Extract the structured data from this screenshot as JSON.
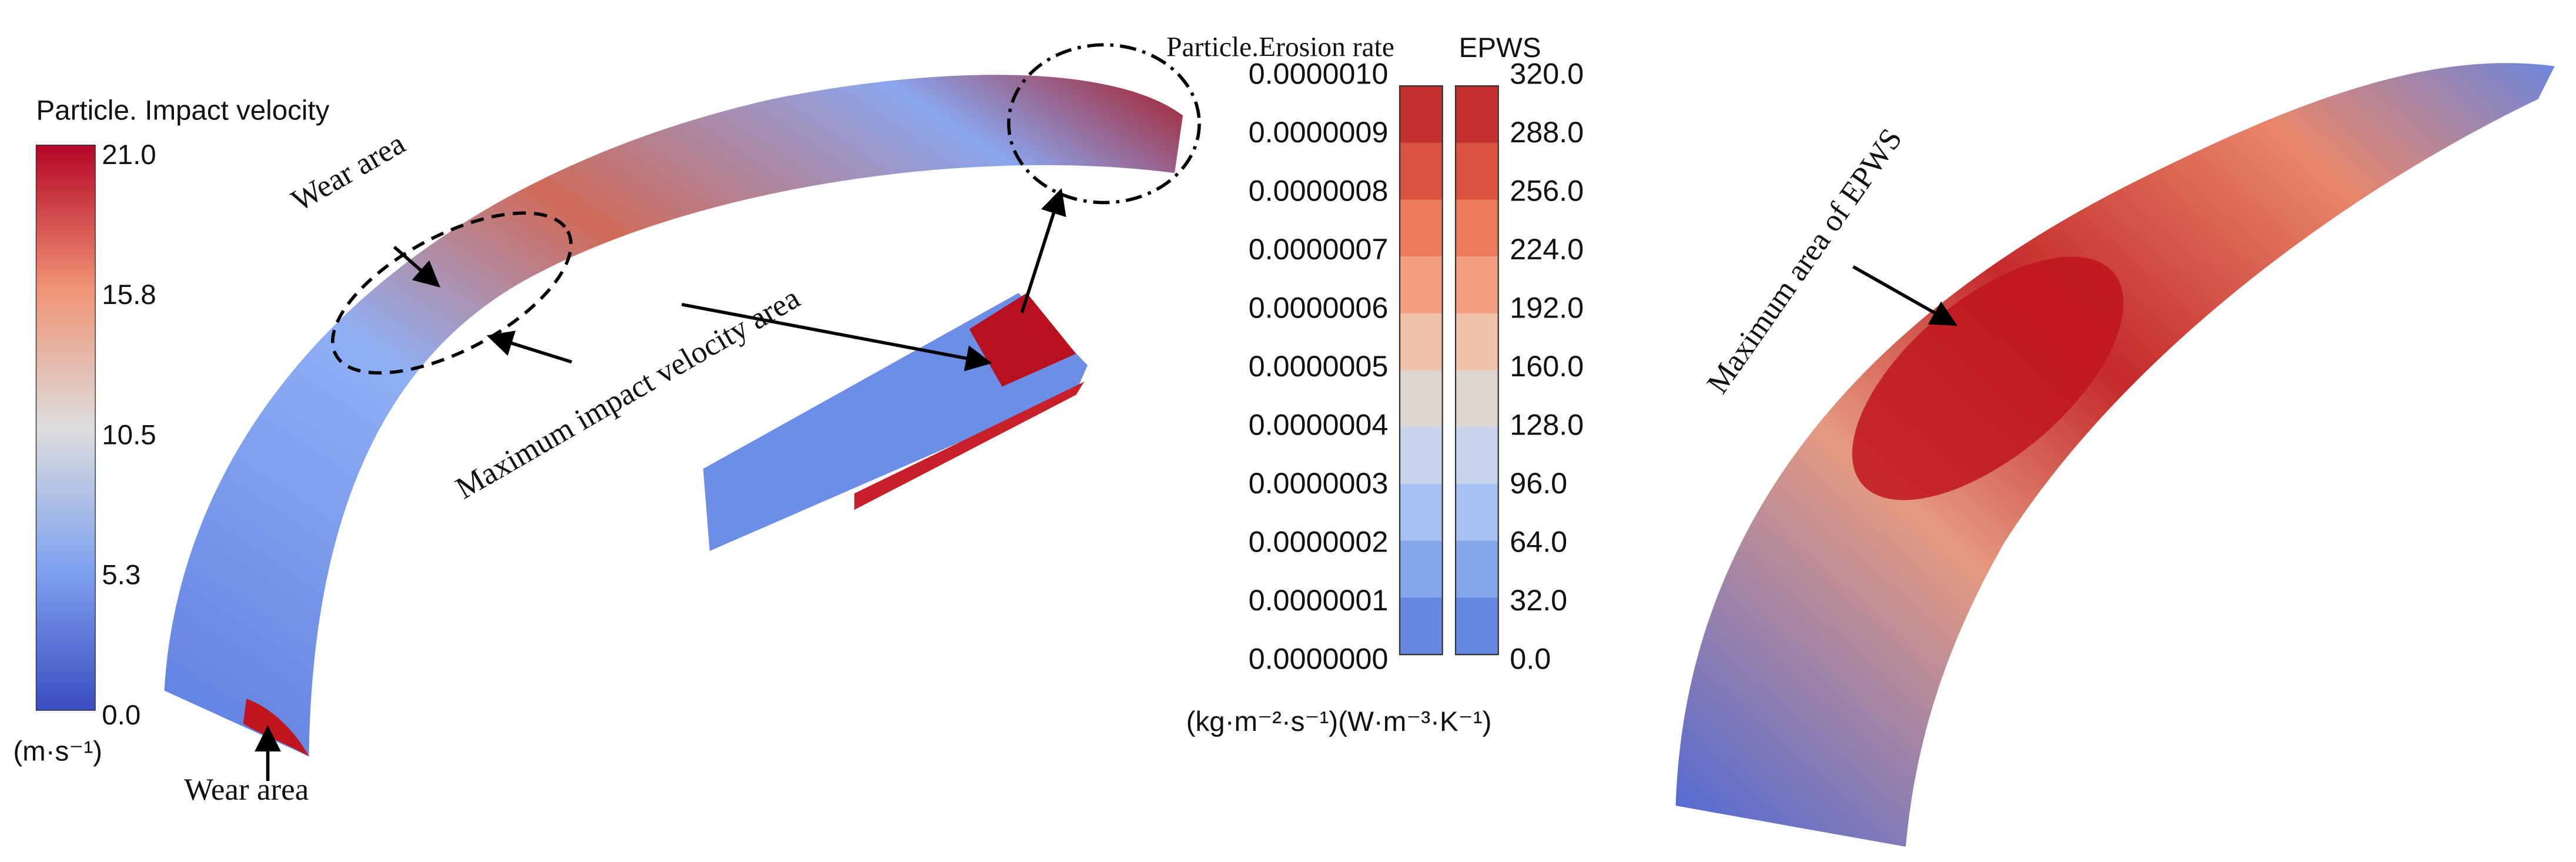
{
  "impact_colorbar": {
    "title": "Particle. Impact velocity",
    "ticks": [
      "21.0",
      "15.8",
      "10.5",
      "5.3",
      "0.0"
    ],
    "unit": "(m·s⁻¹)"
  },
  "erosion_colorbar": {
    "title": "Particle.Erosion rate",
    "ticks": [
      "0.0000010",
      "0.0000009",
      "0.0000008",
      "0.0000007",
      "0.0000006",
      "0.0000005",
      "0.0000004",
      "0.0000003",
      "0.0000002",
      "0.0000001",
      "0.0000000"
    ]
  },
  "epws_colorbar": {
    "title": "EPWS",
    "ticks": [
      "320.0",
      "288.0",
      "256.0",
      "224.0",
      "192.0",
      "160.0",
      "128.0",
      "96.0",
      "64.0",
      "32.0",
      "0.0"
    ]
  },
  "units_line": "(kg·m⁻²·s⁻¹)(W·m⁻³·K⁻¹)",
  "annotations": [
    "Wear area",
    "Maximum impact velocity area",
    "Wear area",
    "Maximum area of EPWS"
  ]
}
